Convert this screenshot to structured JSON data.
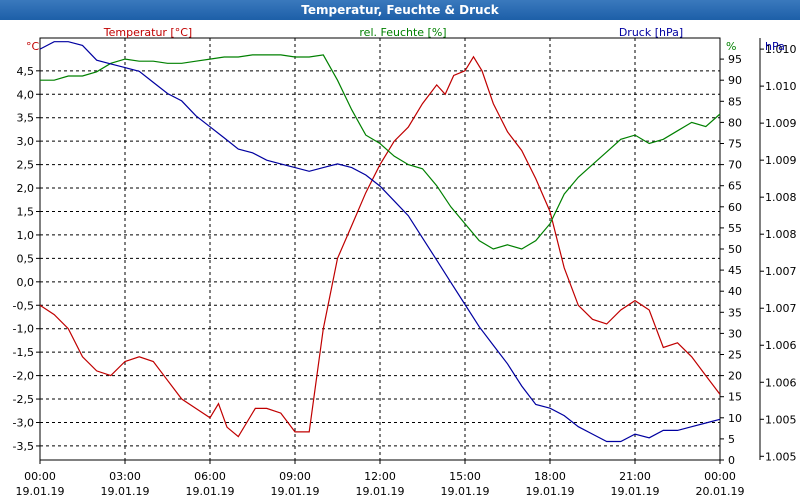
{
  "window": {
    "title": "Temperatur, Feuchte & Druck"
  },
  "colors": {
    "temperature": "#c00000",
    "humidity": "#008000",
    "pressure": "#0000a0",
    "grid": "#000000",
    "axes_text": "#000000",
    "titlebar": "#1d5fa8"
  },
  "chart_data": {
    "type": "line",
    "title": "Temperatur, Feuchte & Druck",
    "grid": true,
    "x": {
      "ticks": [
        {
          "time": "00:00",
          "date": "19.01.19",
          "hour": 0
        },
        {
          "time": "03:00",
          "date": "19.01.19",
          "hour": 3
        },
        {
          "time": "06:00",
          "date": "19.01.19",
          "hour": 6
        },
        {
          "time": "09:00",
          "date": "19.01.19",
          "hour": 9
        },
        {
          "time": "12:00",
          "date": "19.01.19",
          "hour": 12
        },
        {
          "time": "15:00",
          "date": "19.01.19",
          "hour": 15
        },
        {
          "time": "18:00",
          "date": "19.01.19",
          "hour": 18
        },
        {
          "time": "21:00",
          "date": "19.01.19",
          "hour": 21
        },
        {
          "time": "00:00",
          "date": "20.01.19",
          "hour": 24
        }
      ],
      "range": [
        0,
        24
      ]
    },
    "axes": {
      "temperature": {
        "label": "Temperatur [°C]",
        "unit": "°C",
        "range": [
          -3.8,
          5.2
        ],
        "ticks": [
          "4,5",
          "4,0",
          "3,5",
          "3,0",
          "2,5",
          "2,0",
          "1,5",
          "1,0",
          "0,5",
          "0,0",
          "-0,5",
          "-1,0",
          "-1,5",
          "-2,0",
          "-2,5",
          "-3,0",
          "-3,5"
        ]
      },
      "humidity": {
        "label": "rel. Feuchte [%]",
        "unit": "%",
        "range": [
          0,
          100
        ],
        "ticks": [
          "95",
          "90",
          "85",
          "80",
          "75",
          "70",
          "65",
          "60",
          "55",
          "50",
          "45",
          "40",
          "35",
          "30",
          "25",
          "20",
          "15",
          "10",
          "5",
          "0"
        ]
      },
      "pressure": {
        "label": "Druck [hPa]",
        "unit": "hPa",
        "range": [
          1004.6,
          1010.3
        ],
        "ticks": [
          "1.010",
          "1.010",
          "1.009",
          "1.009",
          "1.008",
          "1.008",
          "1.007",
          "1.007",
          "1.006",
          "1.006",
          "1.005",
          "1.005"
        ]
      }
    },
    "series": [
      {
        "name": "Temperatur",
        "axis": "temperature",
        "x": [
          0,
          0.5,
          1,
          1.5,
          2,
          2.5,
          3,
          3.5,
          4,
          4.5,
          5,
          5.5,
          6,
          6.3,
          6.6,
          7,
          7.3,
          7.6,
          8,
          8.5,
          9,
          9.5,
          10,
          10.5,
          11,
          11.5,
          12,
          12.5,
          13,
          13.5,
          14,
          14.3,
          14.6,
          15,
          15.3,
          15.6,
          16,
          16.5,
          17,
          17.5,
          18,
          18.5,
          19,
          19.5,
          20,
          20.5,
          21,
          21.5,
          22,
          22.5,
          23,
          23.5,
          24
        ],
        "values": [
          -0.5,
          -0.7,
          -1.0,
          -1.6,
          -1.9,
          -2.0,
          -1.7,
          -1.6,
          -1.7,
          -2.1,
          -2.5,
          -2.7,
          -2.9,
          -2.6,
          -3.1,
          -3.3,
          -3.0,
          -2.7,
          -2.7,
          -2.8,
          -3.2,
          -3.2,
          -1.0,
          0.5,
          1.2,
          1.9,
          2.5,
          3.0,
          3.3,
          3.8,
          4.2,
          4.0,
          4.4,
          4.5,
          4.8,
          4.5,
          3.8,
          3.2,
          2.8,
          2.2,
          1.5,
          0.3,
          -0.5,
          -0.8,
          -0.9,
          -0.6,
          -0.4,
          -0.6,
          -1.4,
          -1.3,
          -1.6,
          -2.0,
          -2.4
        ]
      },
      {
        "name": "rel. Feuchte",
        "axis": "humidity",
        "x": [
          0,
          0.5,
          1,
          1.5,
          2,
          2.5,
          3,
          3.5,
          4,
          4.5,
          5,
          5.5,
          6,
          6.5,
          7,
          7.5,
          8,
          8.5,
          9,
          9.5,
          10,
          10.5,
          11,
          11.5,
          12,
          12.5,
          13,
          13.5,
          14,
          14.5,
          15,
          15.5,
          16,
          16.5,
          17,
          17.5,
          18,
          18.5,
          19,
          19.5,
          20,
          20.5,
          21,
          21.5,
          22,
          22.5,
          23,
          23.5,
          24
        ],
        "values": [
          90,
          90,
          91,
          91,
          92,
          94,
          95,
          94.5,
          94.5,
          94,
          94,
          94.5,
          95,
          95.5,
          95.5,
          96,
          96,
          96,
          95.5,
          95.5,
          96,
          90,
          83,
          77,
          75,
          72,
          70,
          69,
          65,
          60,
          56,
          52,
          50,
          51,
          50,
          52,
          56,
          63,
          67,
          70,
          73,
          76,
          77,
          75,
          76,
          78,
          80,
          79,
          82
        ]
      },
      {
        "name": "Druck",
        "axis": "pressure",
        "x": [
          0,
          0.5,
          1,
          1.5,
          2,
          2.5,
          3,
          3.5,
          4,
          4.5,
          5,
          5.5,
          6,
          6.5,
          7,
          7.5,
          8,
          8.5,
          9,
          9.5,
          10,
          10.5,
          11,
          11.5,
          12,
          12.5,
          13,
          13.5,
          14,
          14.5,
          15,
          15.5,
          16,
          16.5,
          17,
          17.5,
          18,
          18.5,
          19,
          19.5,
          20,
          20.5,
          21,
          21.5,
          22,
          22.5,
          23,
          23.5,
          24
        ],
        "values": [
          1010.15,
          1010.25,
          1010.25,
          1010.2,
          1010.0,
          1009.95,
          1009.9,
          1009.85,
          1009.7,
          1009.55,
          1009.45,
          1009.25,
          1009.1,
          1008.95,
          1008.8,
          1008.75,
          1008.65,
          1008.6,
          1008.55,
          1008.5,
          1008.55,
          1008.6,
          1008.55,
          1008.45,
          1008.3,
          1008.1,
          1007.9,
          1007.6,
          1007.3,
          1007.0,
          1006.7,
          1006.4,
          1006.15,
          1005.9,
          1005.6,
          1005.35,
          1005.3,
          1005.2,
          1005.05,
          1004.95,
          1004.85,
          1004.85,
          1004.95,
          1004.9,
          1005.0,
          1005.0,
          1005.05,
          1005.1,
          1005.15
        ]
      }
    ]
  }
}
